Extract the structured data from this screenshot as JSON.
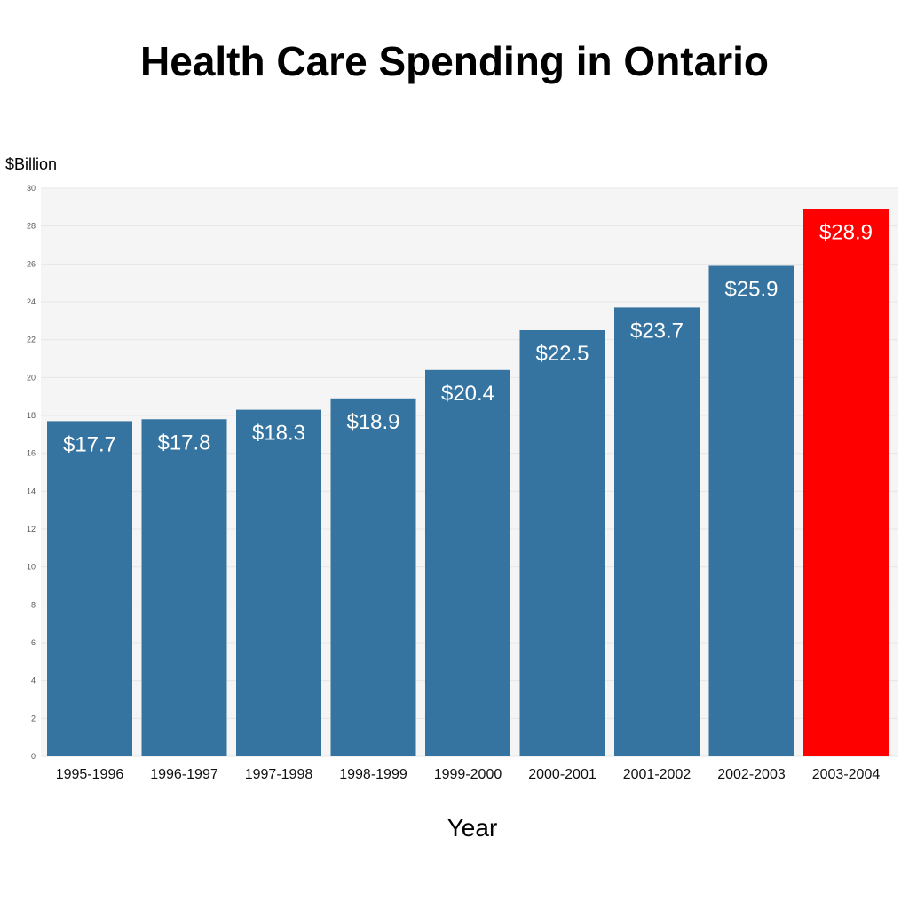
{
  "chart_data": {
    "type": "bar",
    "title": "Health Care Spending in Ontario",
    "xlabel": "Year",
    "ylabel": "$Billion",
    "ylim": [
      0,
      30
    ],
    "yticks": [
      0,
      2,
      4,
      6,
      8,
      10,
      12,
      14,
      16,
      18,
      20,
      22,
      24,
      26,
      28,
      30
    ],
    "grid": true,
    "categories": [
      "1995-1996",
      "1996-1997",
      "1997-1998",
      "1998-1999",
      "1999-2000",
      "2000-2001",
      "2001-2002",
      "2002-2003",
      "2003-2004"
    ],
    "values": [
      17.7,
      17.8,
      18.3,
      18.9,
      20.4,
      22.5,
      23.7,
      25.9,
      28.9
    ],
    "data_labels": [
      "$17.7",
      "$17.8",
      "$18.3",
      "$18.9",
      "$20.4",
      "$22.5",
      "$23.7",
      "$25.9",
      "$28.9"
    ],
    "bar_colors": [
      "#3574a0",
      "#3574a0",
      "#3574a0",
      "#3574a0",
      "#3574a0",
      "#3574a0",
      "#3574a0",
      "#3574a0",
      "#ff0000"
    ],
    "plot_background": "#f5f5f5",
    "gridline_color": "#e6e6e6"
  }
}
